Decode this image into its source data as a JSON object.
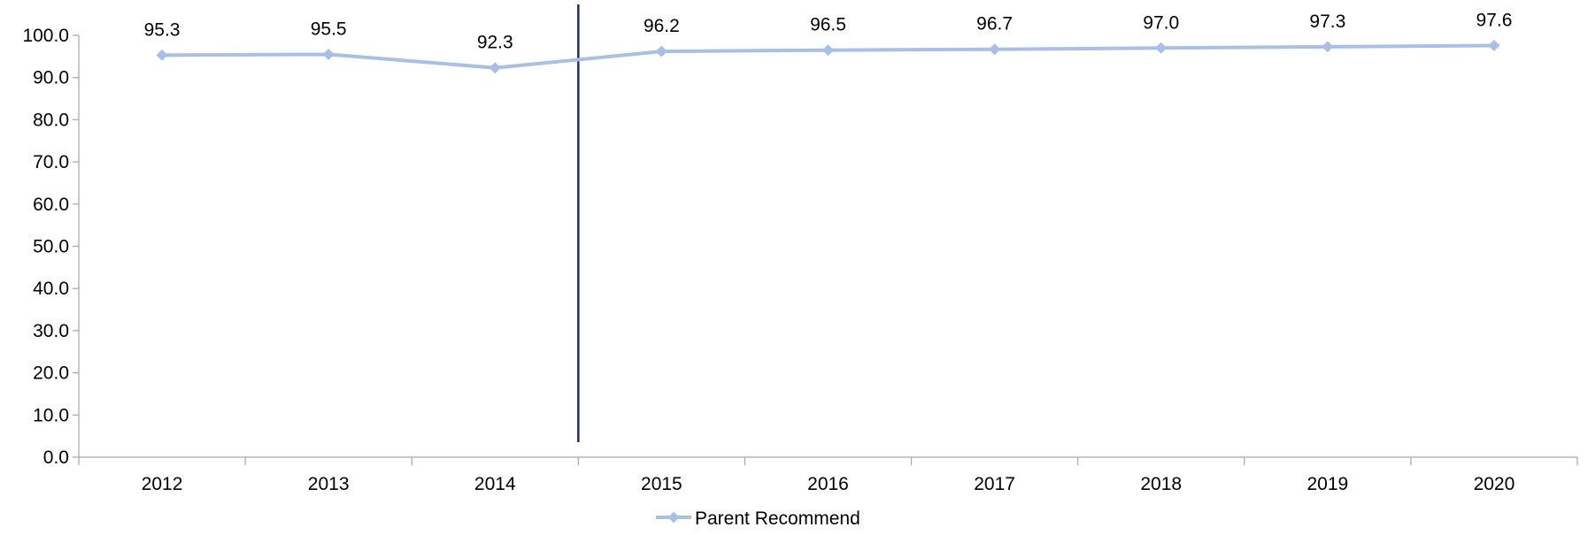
{
  "chart_data": {
    "type": "line",
    "categories": [
      "2012",
      "2013",
      "2014",
      "2015",
      "2016",
      "2017",
      "2018",
      "2019",
      "2020"
    ],
    "series": [
      {
        "name": "Parent Recommend",
        "values": [
          95.3,
          95.5,
          92.3,
          96.2,
          96.5,
          96.7,
          97.0,
          97.3,
          97.6
        ],
        "value_labels": [
          "95.3",
          "95.5",
          "92.3",
          "96.2",
          "96.5",
          "96.7",
          "97.0",
          "97.3",
          "97.6"
        ],
        "color": "#a9bfe4",
        "marker": "diamond"
      }
    ],
    "y_ticks": [
      "0.0",
      "10.0",
      "20.0",
      "30.0",
      "40.0",
      "50.0",
      "60.0",
      "70.0",
      "80.0",
      "90.0",
      "100.0"
    ],
    "ylim": [
      0,
      100
    ],
    "grid": false,
    "legend_position": "bottom-center",
    "divider": {
      "between_categories": [
        "2014",
        "2015"
      ],
      "color": "#1f2d6b"
    },
    "axis_color": "#a6a6a6"
  }
}
